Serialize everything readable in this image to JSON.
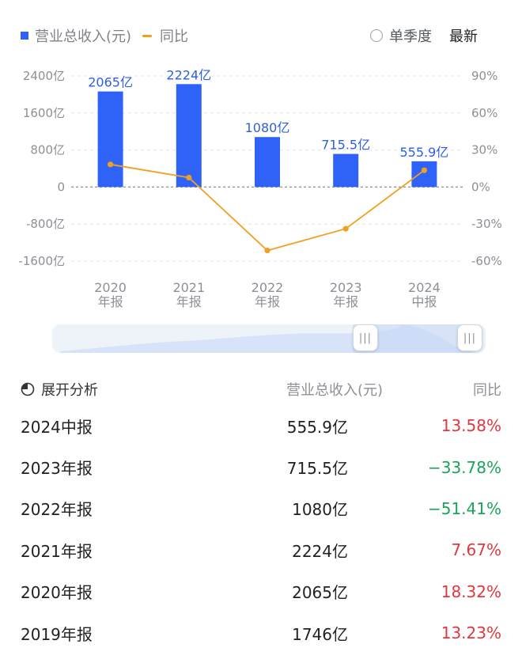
{
  "legend": {
    "bar_label": "营业总收入(元)",
    "line_label": "同比"
  },
  "controls": {
    "season_label": "单季度",
    "latest_label": "最新"
  },
  "colors": {
    "bar": "#2f63f7",
    "line": "#f0a020",
    "positive": "#e0383e",
    "negative": "#1ca35a"
  },
  "chart_data": {
    "type": "bar",
    "categories": [
      [
        "2020",
        "年报"
      ],
      [
        "2021",
        "年报"
      ],
      [
        "2022",
        "年报"
      ],
      [
        "2023",
        "年报"
      ],
      [
        "2024",
        "中报"
      ]
    ],
    "series": [
      {
        "name": "营业总收入(元)",
        "unit": "亿",
        "values": [
          2065,
          2224,
          1080,
          715.5,
          555.9
        ],
        "labels": [
          "2065亿",
          "2224亿",
          "1080亿",
          "715.5亿",
          "555.9亿"
        ]
      },
      {
        "name": "同比",
        "type": "line",
        "unit": "%",
        "values": [
          18.32,
          7.67,
          -51.41,
          -33.78,
          13.58
        ]
      }
    ],
    "y_left": {
      "ticks": [
        2400,
        1600,
        800,
        0,
        -800,
        -1600
      ],
      "tick_labels": [
        "2400亿",
        "1600亿",
        "800亿",
        "0",
        "-800亿",
        "-1600亿"
      ],
      "range": [
        -1600,
        2400
      ]
    },
    "y_right": {
      "ticks": [
        90,
        60,
        30,
        0,
        -30,
        -60
      ],
      "tick_labels": [
        "90%",
        "60%",
        "30%",
        "0%",
        "-30%",
        "-60%"
      ],
      "range": [
        -60,
        90
      ]
    }
  },
  "table": {
    "header": {
      "col1": "展开分析",
      "col2": "营业总收入(元)",
      "col3": "同比"
    },
    "rows": [
      {
        "period": "2024中报",
        "revenue": "555.9亿",
        "yoy": "13.58%",
        "sign": "pos"
      },
      {
        "period": "2023年报",
        "revenue": "715.5亿",
        "yoy": "−33.78%",
        "sign": "neg"
      },
      {
        "period": "2022年报",
        "revenue": "1080亿",
        "yoy": "−51.41%",
        "sign": "neg"
      },
      {
        "period": "2021年报",
        "revenue": "2224亿",
        "yoy": "7.67%",
        "sign": "pos"
      },
      {
        "period": "2020年报",
        "revenue": "2065亿",
        "yoy": "18.32%",
        "sign": "pos"
      },
      {
        "period": "2019年报",
        "revenue": "1746亿",
        "yoy": "13.23%",
        "sign": "pos"
      }
    ]
  }
}
